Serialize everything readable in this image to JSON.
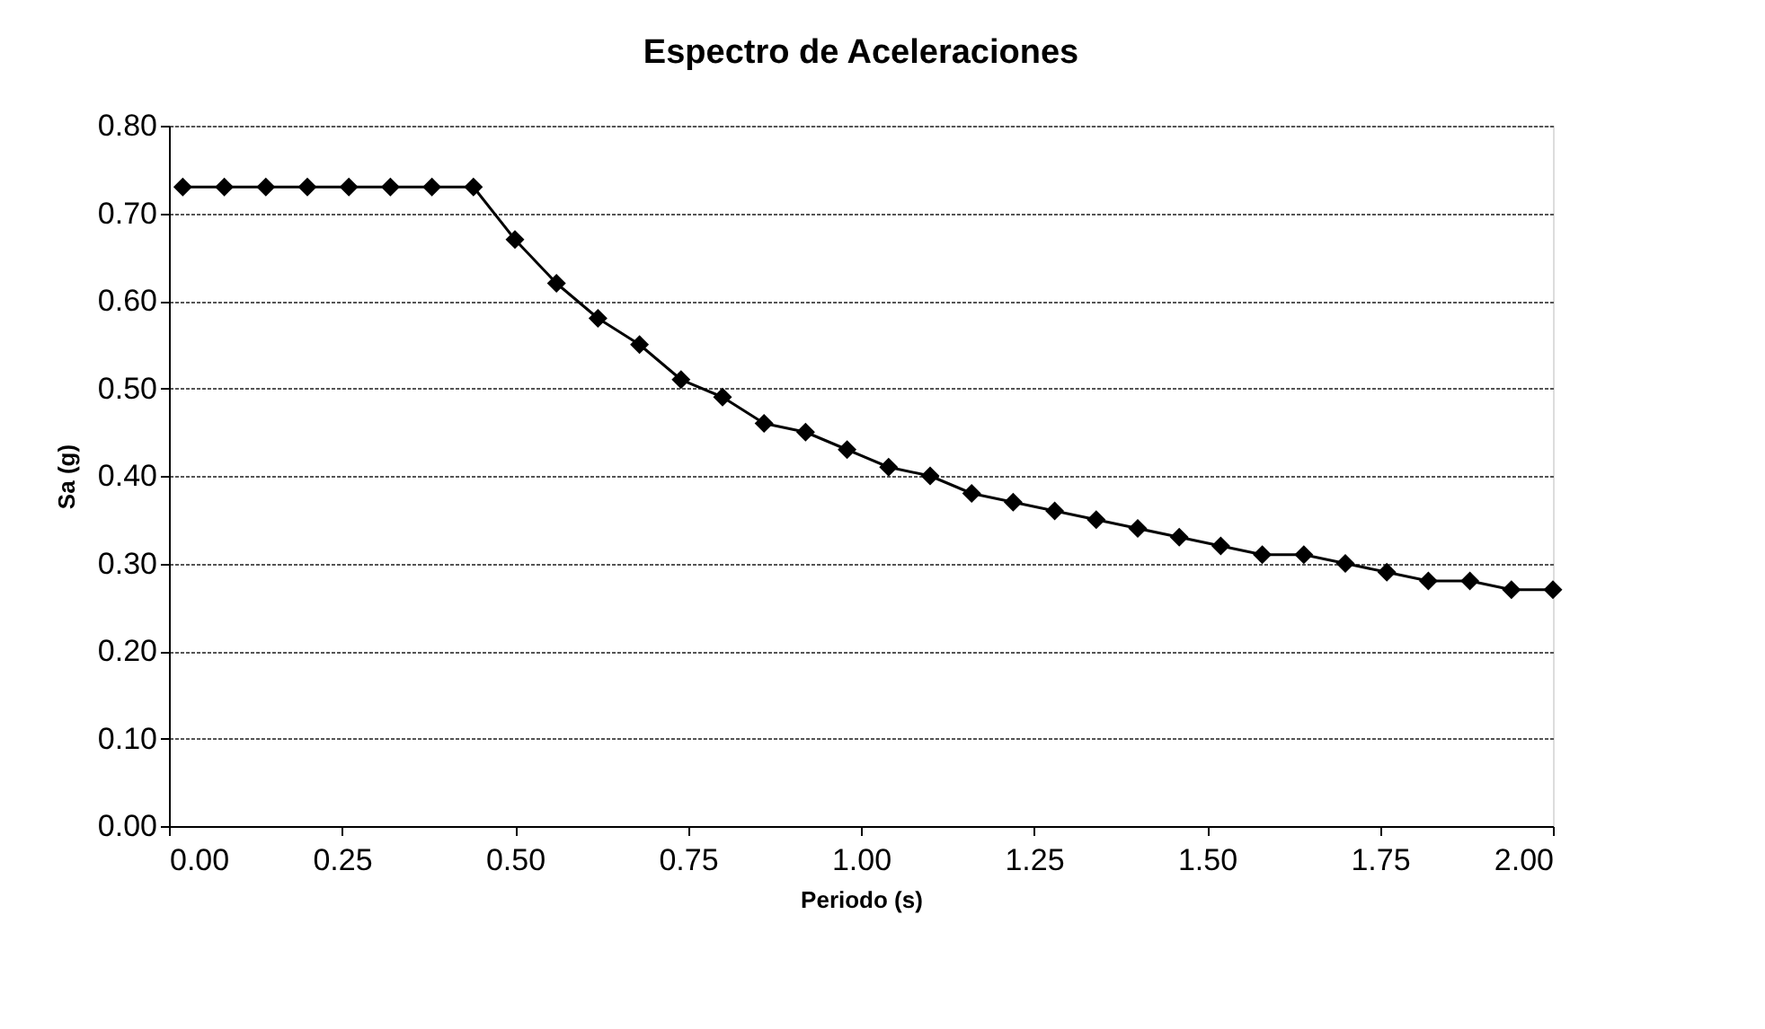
{
  "chart_data": {
    "type": "line",
    "title": "Espectro de Aceleraciones",
    "xlabel": "Periodo (s)",
    "ylabel": "Sa (g)",
    "x": [
      0.02,
      0.08,
      0.14,
      0.2,
      0.26,
      0.32,
      0.38,
      0.44,
      0.5,
      0.56,
      0.62,
      0.68,
      0.74,
      0.8,
      0.86,
      0.92,
      0.98,
      1.04,
      1.1,
      1.16,
      1.22,
      1.28,
      1.34,
      1.4,
      1.46,
      1.52,
      1.58,
      1.64,
      1.7,
      1.76,
      1.82,
      1.88,
      1.94,
      2.0
    ],
    "series": [
      {
        "color": "#000000",
        "values": [
          0.73,
          0.73,
          0.73,
          0.73,
          0.73,
          0.73,
          0.73,
          0.73,
          0.67,
          0.62,
          0.58,
          0.55,
          0.51,
          0.49,
          0.46,
          0.45,
          0.43,
          0.41,
          0.4,
          0.38,
          0.37,
          0.36,
          0.35,
          0.34,
          0.33,
          0.32,
          0.31,
          0.31,
          0.3,
          0.29,
          0.28,
          0.28,
          0.27,
          0.27
        ]
      }
    ],
    "xlim": [
      0,
      2
    ],
    "xticks": [
      {
        "value": 0,
        "label": "0.00"
      },
      {
        "value": 0.25,
        "label": "0.25"
      },
      {
        "value": 0.5,
        "label": "0.50"
      },
      {
        "value": 0.75,
        "label": "0.75"
      },
      {
        "value": 1,
        "label": "1.00"
      },
      {
        "value": 1.25,
        "label": "1.25"
      },
      {
        "value": 1.5,
        "label": "1.50"
      },
      {
        "value": 1.75,
        "label": "1.75"
      },
      {
        "value": 2,
        "label": "2.00"
      }
    ],
    "ylim": [
      0,
      0.8
    ],
    "yticks": [
      {
        "value": 0,
        "label": "0.00"
      },
      {
        "value": 0.1,
        "label": "0.10"
      },
      {
        "value": 0.2,
        "label": "0.20"
      },
      {
        "value": 0.3,
        "label": "0.30"
      },
      {
        "value": 0.4,
        "label": "0.40"
      },
      {
        "value": 0.5,
        "label": "0.50"
      },
      {
        "value": 0.6,
        "label": "0.60"
      },
      {
        "value": 0.7,
        "label": "0.70"
      },
      {
        "value": 0.8,
        "label": "0.80"
      }
    ],
    "grid": "y",
    "marker": "diamond",
    "line_style": "solid"
  }
}
